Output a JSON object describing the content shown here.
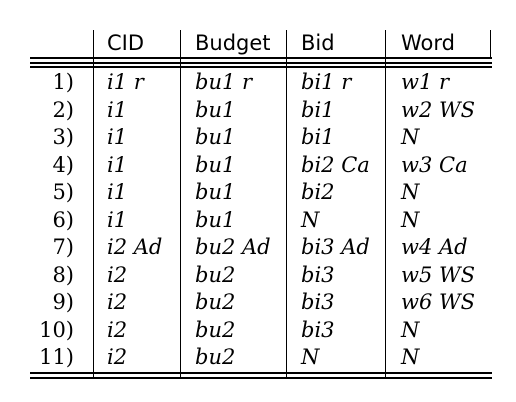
{
  "table": {
    "headers": [
      "CID",
      "Budget",
      "Bid",
      "Word"
    ],
    "rows": [
      {
        "num": "1)",
        "cells": [
          "i1 r",
          "bu1 r",
          "bi1 r",
          "w1 r"
        ]
      },
      {
        "num": "2)",
        "cells": [
          "i1",
          "bu1",
          "bi1",
          "w2 WS"
        ]
      },
      {
        "num": "3)",
        "cells": [
          "i1",
          "bu1",
          "bi1",
          "N"
        ]
      },
      {
        "num": "4)",
        "cells": [
          "i1",
          "bu1",
          "bi2 Ca",
          "w3 Ca"
        ]
      },
      {
        "num": "5)",
        "cells": [
          "i1",
          "bu1",
          "bi2",
          "N"
        ]
      },
      {
        "num": "6)",
        "cells": [
          "i1",
          "bu1",
          "N",
          "N"
        ]
      },
      {
        "num": "7)",
        "cells": [
          "i2 Ad",
          "bu2 Ad",
          "bi3 Ad",
          "w4 Ad"
        ]
      },
      {
        "num": "8)",
        "cells": [
          "i2",
          "bu2",
          "bi3",
          "w5 WS"
        ]
      },
      {
        "num": "9)",
        "cells": [
          "i2",
          "bu2",
          "bi3",
          "w6 WS"
        ]
      },
      {
        "num": "10)",
        "cells": [
          "i2",
          "bu2",
          "bi3",
          "N"
        ]
      },
      {
        "num": "11)",
        "cells": [
          "i2",
          "bu2",
          "N",
          "N"
        ]
      }
    ]
  }
}
